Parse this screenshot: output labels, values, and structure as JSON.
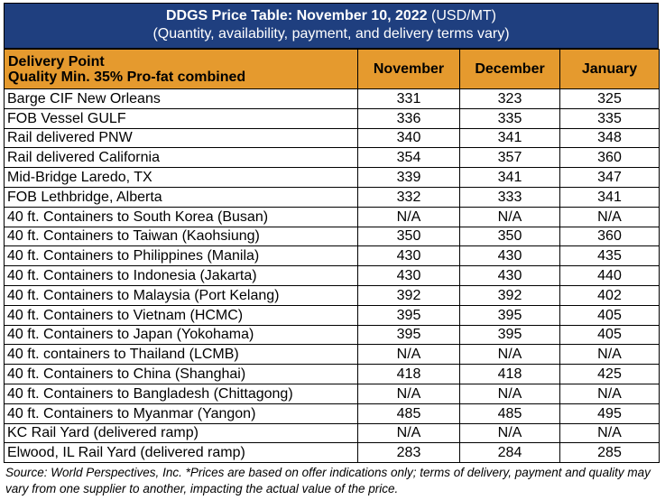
{
  "title": {
    "bold": "DDGS Price Table: November 10, 2022",
    "suffix": " (USD/MT)",
    "subtitle": "(Quantity, availability, payment, and delivery terms vary)"
  },
  "header": {
    "delivery_point_line1": "Delivery Point",
    "delivery_point_line2": "Quality Min. 35% Pro-fat combined",
    "months": [
      "November",
      "December",
      "January"
    ]
  },
  "rows": [
    {
      "point": "Barge CIF New Orleans",
      "nov": "331",
      "dec": "323",
      "jan": "325"
    },
    {
      "point": "FOB Vessel GULF",
      "nov": "336",
      "dec": "335",
      "jan": "335"
    },
    {
      "point": "Rail delivered PNW",
      "nov": "340",
      "dec": "341",
      "jan": "348"
    },
    {
      "point": "Rail delivered California",
      "nov": "354",
      "dec": "357",
      "jan": "360"
    },
    {
      "point": "Mid-Bridge Laredo, TX",
      "nov": "339",
      "dec": "341",
      "jan": "347"
    },
    {
      "point": "FOB Lethbridge, Alberta",
      "nov": "332",
      "dec": "333",
      "jan": "341"
    },
    {
      "point": "40 ft. Containers to South Korea (Busan)",
      "nov": "N/A",
      "dec": "N/A",
      "jan": "N/A"
    },
    {
      "point": "40 ft. Containers to Taiwan (Kaohsiung)",
      "nov": "350",
      "dec": "350",
      "jan": "360"
    },
    {
      "point": "40 ft. Containers to Philippines (Manila)",
      "nov": "430",
      "dec": "430",
      "jan": "435"
    },
    {
      "point": "40 ft. Containers to Indonesia (Jakarta)",
      "nov": "430",
      "dec": "430",
      "jan": "440"
    },
    {
      "point": "40 ft. Containers to Malaysia (Port Kelang)",
      "nov": "392",
      "dec": "392",
      "jan": "402"
    },
    {
      "point": "40 ft. Containers to Vietnam (HCMC)",
      "nov": "395",
      "dec": "395",
      "jan": "405"
    },
    {
      "point": "40 ft. Containers to Japan (Yokohama)",
      "nov": "395",
      "dec": "395",
      "jan": "405"
    },
    {
      "point": "40 ft. containers to Thailand (LCMB)",
      "nov": "N/A",
      "dec": "N/A",
      "jan": "N/A"
    },
    {
      "point": "40 ft. Containers to China (Shanghai)",
      "nov": "418",
      "dec": "418",
      "jan": "425"
    },
    {
      "point": "40 ft. Containers to Bangladesh (Chittagong)",
      "nov": "N/A",
      "dec": "N/A",
      "jan": "N/A"
    },
    {
      "point": "40 ft. Containers to Myanmar (Yangon)",
      "nov": "485",
      "dec": "485",
      "jan": "495"
    },
    {
      "point": "KC Rail Yard (delivered ramp)",
      "nov": "N/A",
      "dec": "N/A",
      "jan": "N/A"
    },
    {
      "point": "Elwood, IL Rail Yard (delivered ramp)",
      "nov": "283",
      "dec": "284",
      "jan": "285"
    }
  ],
  "source_note": "Source: World Perspectives, Inc. *Prices are based on offer indications only; terms of delivery, payment and quality may vary from one supplier to another, impacting the actual value of the price.",
  "colors": {
    "title_background": "#1f3f7f",
    "header_background": "#e59a2e"
  }
}
